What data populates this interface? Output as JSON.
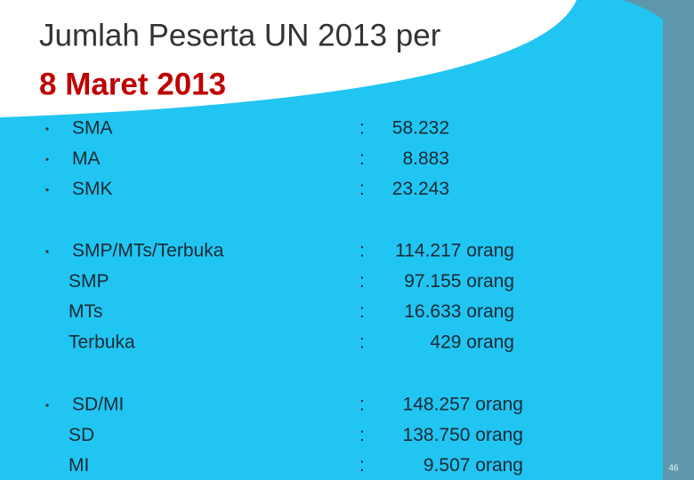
{
  "title": {
    "line1": "Jumlah Peserta UN 2013 per",
    "line2": "8 Maret 2013"
  },
  "groups": [
    {
      "rows": [
        {
          "label": "SMA",
          "colon": ":",
          "value": "58.232",
          "bullet": true
        },
        {
          "label": "MA",
          "colon": ":",
          "value": "8.883",
          "bullet": true
        },
        {
          "label": "SMK",
          "colon": ":",
          "value": "23.243",
          "bullet": true
        }
      ]
    },
    {
      "rows": [
        {
          "label": "SMP/MTs/Terbuka",
          "colon": ":",
          "value": "114.217 orang",
          "bullet": true
        },
        {
          "label": "SMP",
          "colon": ":",
          "value": "97.155 orang",
          "bullet": false
        },
        {
          "label": "MTs",
          "colon": ":",
          "value": "16.633 orang",
          "bullet": false
        },
        {
          "label": "Terbuka",
          "colon": ":",
          "value": "429 orang",
          "bullet": false
        }
      ]
    },
    {
      "rows": [
        {
          "label": "SD/MI",
          "colon": ":",
          "value": "148.257 orang",
          "bullet": true
        },
        {
          "label": "SD",
          "colon": ":",
          "value": "138.750 orang",
          "bullet": false
        },
        {
          "label": "MI",
          "colon": ":",
          "value": "9.507 orang",
          "bullet": false
        }
      ]
    }
  ],
  "page_number": "46"
}
